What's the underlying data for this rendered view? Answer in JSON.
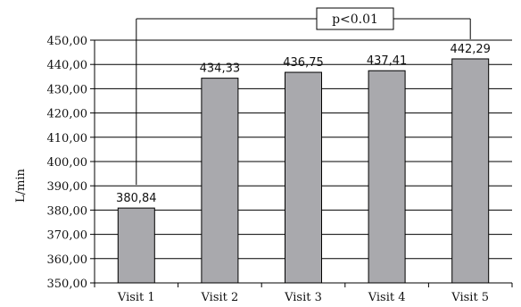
{
  "chart_data": {
    "type": "bar",
    "title": "",
    "xlabel": "",
    "ylabel": "L/min",
    "ylim": [
      350,
      450
    ],
    "yticks": [
      "350,00",
      "360,00",
      "370,00",
      "380,00",
      "390,00",
      "400,00",
      "410,00",
      "420,00",
      "430,00",
      "440,00",
      "450,00"
    ],
    "ytick_values": [
      350,
      360,
      370,
      380,
      390,
      400,
      410,
      420,
      430,
      440,
      450
    ],
    "categories": [
      "Visit 1",
      "Visit 2",
      "Visit 3",
      "Visit 4",
      "Visit 5"
    ],
    "values": [
      380.84,
      434.33,
      436.75,
      437.41,
      442.29
    ],
    "value_labels": [
      "380,84",
      "434,33",
      "436,75",
      "437,41",
      "442,29"
    ],
    "grid": true,
    "bar_color": "#a9a9ad",
    "annotation": {
      "text": "p<0.01",
      "from_category": "Visit 1",
      "to_category": "Visit 5"
    }
  }
}
